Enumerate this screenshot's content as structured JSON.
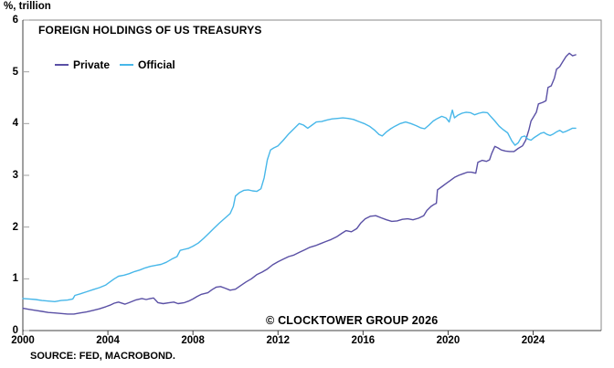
{
  "page": {
    "y_axis_unit": "%, trillion",
    "title": "FOREIGN HOLDINGS OF US TREASURYS",
    "copyright": "© CLOCKTOWER GROUP 2026",
    "source": "SOURCE: FED, MACROBOND."
  },
  "legend": [
    {
      "label": "Private",
      "color": "#5a50a5"
    },
    {
      "label": "Official",
      "color": "#47b7e9"
    }
  ],
  "colors": {
    "private_line": "#5a50a5",
    "official_line": "#47b7e9",
    "axis_dark": "#404040",
    "frame_gray": "#8a8a8a",
    "tick_gray": "#a0a0a0",
    "text": "#000000"
  },
  "chart_data": {
    "type": "line",
    "title": "FOREIGN HOLDINGS OF US TREASURYS",
    "ylabel": "%, trillion",
    "xlabel": "",
    "ylim": [
      0,
      6
    ],
    "yticks": [
      0,
      1,
      2,
      3,
      4,
      5,
      6
    ],
    "xlim": [
      2000,
      2027.2
    ],
    "xticks": [
      2000,
      2004,
      2008,
      2012,
      2016,
      2020,
      2024
    ],
    "grid": false,
    "legend_position": "top-left-inside",
    "series": [
      {
        "name": "Private",
        "color": "#5a50a5",
        "points": [
          [
            2000.0,
            0.43
          ],
          [
            2000.3,
            0.41
          ],
          [
            2000.6,
            0.39
          ],
          [
            2000.9,
            0.37
          ],
          [
            2001.2,
            0.35
          ],
          [
            2001.5,
            0.34
          ],
          [
            2001.8,
            0.33
          ],
          [
            2002.1,
            0.32
          ],
          [
            2002.4,
            0.32
          ],
          [
            2002.7,
            0.34
          ],
          [
            2003.0,
            0.36
          ],
          [
            2003.3,
            0.39
          ],
          [
            2003.6,
            0.42
          ],
          [
            2003.9,
            0.46
          ],
          [
            2004.1,
            0.49
          ],
          [
            2004.3,
            0.53
          ],
          [
            2004.5,
            0.55
          ],
          [
            2004.8,
            0.51
          ],
          [
            2005.0,
            0.54
          ],
          [
            2005.3,
            0.59
          ],
          [
            2005.6,
            0.62
          ],
          [
            2005.8,
            0.6
          ],
          [
            2006.0,
            0.62
          ],
          [
            2006.15,
            0.63
          ],
          [
            2006.35,
            0.54
          ],
          [
            2006.6,
            0.52
          ],
          [
            2006.9,
            0.54
          ],
          [
            2007.1,
            0.55
          ],
          [
            2007.3,
            0.52
          ],
          [
            2007.6,
            0.54
          ],
          [
            2007.8,
            0.57
          ],
          [
            2008.0,
            0.61
          ],
          [
            2008.2,
            0.66
          ],
          [
            2008.4,
            0.7
          ],
          [
            2008.7,
            0.73
          ],
          [
            2008.9,
            0.79
          ],
          [
            2009.1,
            0.84
          ],
          [
            2009.3,
            0.85
          ],
          [
            2009.5,
            0.82
          ],
          [
            2009.75,
            0.78
          ],
          [
            2010.0,
            0.8
          ],
          [
            2010.25,
            0.87
          ],
          [
            2010.5,
            0.94
          ],
          [
            2010.75,
            1.0
          ],
          [
            2011.0,
            1.08
          ],
          [
            2011.25,
            1.13
          ],
          [
            2011.5,
            1.19
          ],
          [
            2011.75,
            1.27
          ],
          [
            2012.0,
            1.33
          ],
          [
            2012.25,
            1.38
          ],
          [
            2012.5,
            1.43
          ],
          [
            2012.75,
            1.46
          ],
          [
            2013.0,
            1.51
          ],
          [
            2013.25,
            1.56
          ],
          [
            2013.5,
            1.61
          ],
          [
            2013.75,
            1.64
          ],
          [
            2014.0,
            1.68
          ],
          [
            2014.25,
            1.72
          ],
          [
            2014.5,
            1.76
          ],
          [
            2014.75,
            1.81
          ],
          [
            2015.0,
            1.88
          ],
          [
            2015.2,
            1.93
          ],
          [
            2015.45,
            1.91
          ],
          [
            2015.7,
            1.97
          ],
          [
            2015.9,
            2.08
          ],
          [
            2016.1,
            2.16
          ],
          [
            2016.35,
            2.21
          ],
          [
            2016.6,
            2.22
          ],
          [
            2016.85,
            2.18
          ],
          [
            2017.1,
            2.14
          ],
          [
            2017.35,
            2.11
          ],
          [
            2017.6,
            2.12
          ],
          [
            2017.85,
            2.15
          ],
          [
            2018.1,
            2.16
          ],
          [
            2018.35,
            2.14
          ],
          [
            2018.6,
            2.17
          ],
          [
            2018.85,
            2.22
          ],
          [
            2019.0,
            2.32
          ],
          [
            2019.2,
            2.4
          ],
          [
            2019.35,
            2.44
          ],
          [
            2019.45,
            2.46
          ],
          [
            2019.5,
            2.72
          ],
          [
            2019.7,
            2.78
          ],
          [
            2019.9,
            2.84
          ],
          [
            2020.1,
            2.9
          ],
          [
            2020.3,
            2.96
          ],
          [
            2020.5,
            3.0
          ],
          [
            2020.7,
            3.03
          ],
          [
            2020.9,
            3.06
          ],
          [
            2021.1,
            3.06
          ],
          [
            2021.3,
            3.04
          ],
          [
            2021.4,
            3.25
          ],
          [
            2021.6,
            3.29
          ],
          [
            2021.8,
            3.27
          ],
          [
            2021.95,
            3.3
          ],
          [
            2022.05,
            3.42
          ],
          [
            2022.2,
            3.56
          ],
          [
            2022.35,
            3.53
          ],
          [
            2022.5,
            3.49
          ],
          [
            2022.7,
            3.47
          ],
          [
            2022.9,
            3.46
          ],
          [
            2023.1,
            3.46
          ],
          [
            2023.3,
            3.52
          ],
          [
            2023.5,
            3.57
          ],
          [
            2023.65,
            3.68
          ],
          [
            2023.8,
            3.88
          ],
          [
            2023.9,
            4.05
          ],
          [
            2024.05,
            4.15
          ],
          [
            2024.15,
            4.22
          ],
          [
            2024.25,
            4.38
          ],
          [
            2024.45,
            4.41
          ],
          [
            2024.6,
            4.44
          ],
          [
            2024.7,
            4.7
          ],
          [
            2024.85,
            4.73
          ],
          [
            2025.0,
            4.88
          ],
          [
            2025.1,
            5.05
          ],
          [
            2025.25,
            5.1
          ],
          [
            2025.4,
            5.2
          ],
          [
            2025.55,
            5.3
          ],
          [
            2025.7,
            5.36
          ],
          [
            2025.85,
            5.31
          ],
          [
            2026.0,
            5.33
          ]
        ]
      },
      {
        "name": "Official",
        "color": "#47b7e9",
        "points": [
          [
            2000.0,
            0.62
          ],
          [
            2000.3,
            0.61
          ],
          [
            2000.6,
            0.6
          ],
          [
            2000.9,
            0.58
          ],
          [
            2001.2,
            0.57
          ],
          [
            2001.5,
            0.56
          ],
          [
            2001.8,
            0.58
          ],
          [
            2002.1,
            0.59
          ],
          [
            2002.35,
            0.61
          ],
          [
            2002.45,
            0.68
          ],
          [
            2002.7,
            0.71
          ],
          [
            2003.0,
            0.75
          ],
          [
            2003.3,
            0.79
          ],
          [
            2003.6,
            0.83
          ],
          [
            2003.9,
            0.88
          ],
          [
            2004.1,
            0.94
          ],
          [
            2004.3,
            1.0
          ],
          [
            2004.5,
            1.05
          ],
          [
            2004.75,
            1.07
          ],
          [
            2005.0,
            1.1
          ],
          [
            2005.25,
            1.14
          ],
          [
            2005.5,
            1.17
          ],
          [
            2005.75,
            1.21
          ],
          [
            2006.0,
            1.24
          ],
          [
            2006.25,
            1.26
          ],
          [
            2006.5,
            1.28
          ],
          [
            2006.75,
            1.32
          ],
          [
            2007.0,
            1.38
          ],
          [
            2007.25,
            1.43
          ],
          [
            2007.4,
            1.55
          ],
          [
            2007.6,
            1.57
          ],
          [
            2007.8,
            1.59
          ],
          [
            2008.0,
            1.63
          ],
          [
            2008.25,
            1.69
          ],
          [
            2008.5,
            1.78
          ],
          [
            2008.75,
            1.88
          ],
          [
            2009.0,
            1.98
          ],
          [
            2009.25,
            2.08
          ],
          [
            2009.5,
            2.17
          ],
          [
            2009.75,
            2.26
          ],
          [
            2009.9,
            2.4
          ],
          [
            2010.0,
            2.6
          ],
          [
            2010.2,
            2.67
          ],
          [
            2010.4,
            2.71
          ],
          [
            2010.6,
            2.72
          ],
          [
            2010.8,
            2.7
          ],
          [
            2011.0,
            2.69
          ],
          [
            2011.2,
            2.74
          ],
          [
            2011.35,
            2.95
          ],
          [
            2011.5,
            3.3
          ],
          [
            2011.65,
            3.49
          ],
          [
            2011.8,
            3.53
          ],
          [
            2012.0,
            3.57
          ],
          [
            2012.25,
            3.68
          ],
          [
            2012.5,
            3.8
          ],
          [
            2012.75,
            3.9
          ],
          [
            2013.0,
            4.0
          ],
          [
            2013.2,
            3.97
          ],
          [
            2013.4,
            3.91
          ],
          [
            2013.6,
            3.97
          ],
          [
            2013.8,
            4.03
          ],
          [
            2014.05,
            4.04
          ],
          [
            2014.3,
            4.07
          ],
          [
            2014.55,
            4.09
          ],
          [
            2014.8,
            4.1
          ],
          [
            2015.05,
            4.11
          ],
          [
            2015.3,
            4.1
          ],
          [
            2015.55,
            4.08
          ],
          [
            2015.8,
            4.04
          ],
          [
            2016.05,
            4.0
          ],
          [
            2016.3,
            3.95
          ],
          [
            2016.55,
            3.87
          ],
          [
            2016.75,
            3.79
          ],
          [
            2016.9,
            3.76
          ],
          [
            2017.1,
            3.84
          ],
          [
            2017.3,
            3.9
          ],
          [
            2017.5,
            3.95
          ],
          [
            2017.75,
            4.0
          ],
          [
            2018.0,
            4.03
          ],
          [
            2018.25,
            4.0
          ],
          [
            2018.5,
            3.96
          ],
          [
            2018.7,
            3.92
          ],
          [
            2018.9,
            3.9
          ],
          [
            2019.1,
            3.97
          ],
          [
            2019.3,
            4.05
          ],
          [
            2019.5,
            4.1
          ],
          [
            2019.7,
            4.14
          ],
          [
            2019.9,
            4.11
          ],
          [
            2020.05,
            4.03
          ],
          [
            2020.2,
            4.26
          ],
          [
            2020.3,
            4.11
          ],
          [
            2020.45,
            4.16
          ],
          [
            2020.65,
            4.2
          ],
          [
            2020.85,
            4.22
          ],
          [
            2021.05,
            4.21
          ],
          [
            2021.25,
            4.17
          ],
          [
            2021.45,
            4.2
          ],
          [
            2021.65,
            4.22
          ],
          [
            2021.85,
            4.21
          ],
          [
            2022.0,
            4.14
          ],
          [
            2022.2,
            4.05
          ],
          [
            2022.4,
            3.95
          ],
          [
            2022.6,
            3.88
          ],
          [
            2022.8,
            3.82
          ],
          [
            2023.0,
            3.66
          ],
          [
            2023.15,
            3.58
          ],
          [
            2023.3,
            3.63
          ],
          [
            2023.45,
            3.74
          ],
          [
            2023.6,
            3.76
          ],
          [
            2023.75,
            3.7
          ],
          [
            2023.9,
            3.68
          ],
          [
            2024.05,
            3.73
          ],
          [
            2024.2,
            3.77
          ],
          [
            2024.35,
            3.81
          ],
          [
            2024.5,
            3.83
          ],
          [
            2024.65,
            3.79
          ],
          [
            2024.8,
            3.77
          ],
          [
            2024.95,
            3.8
          ],
          [
            2025.1,
            3.84
          ],
          [
            2025.25,
            3.87
          ],
          [
            2025.4,
            3.83
          ],
          [
            2025.55,
            3.85
          ],
          [
            2025.7,
            3.88
          ],
          [
            2025.85,
            3.91
          ],
          [
            2026.0,
            3.91
          ]
        ]
      }
    ]
  }
}
